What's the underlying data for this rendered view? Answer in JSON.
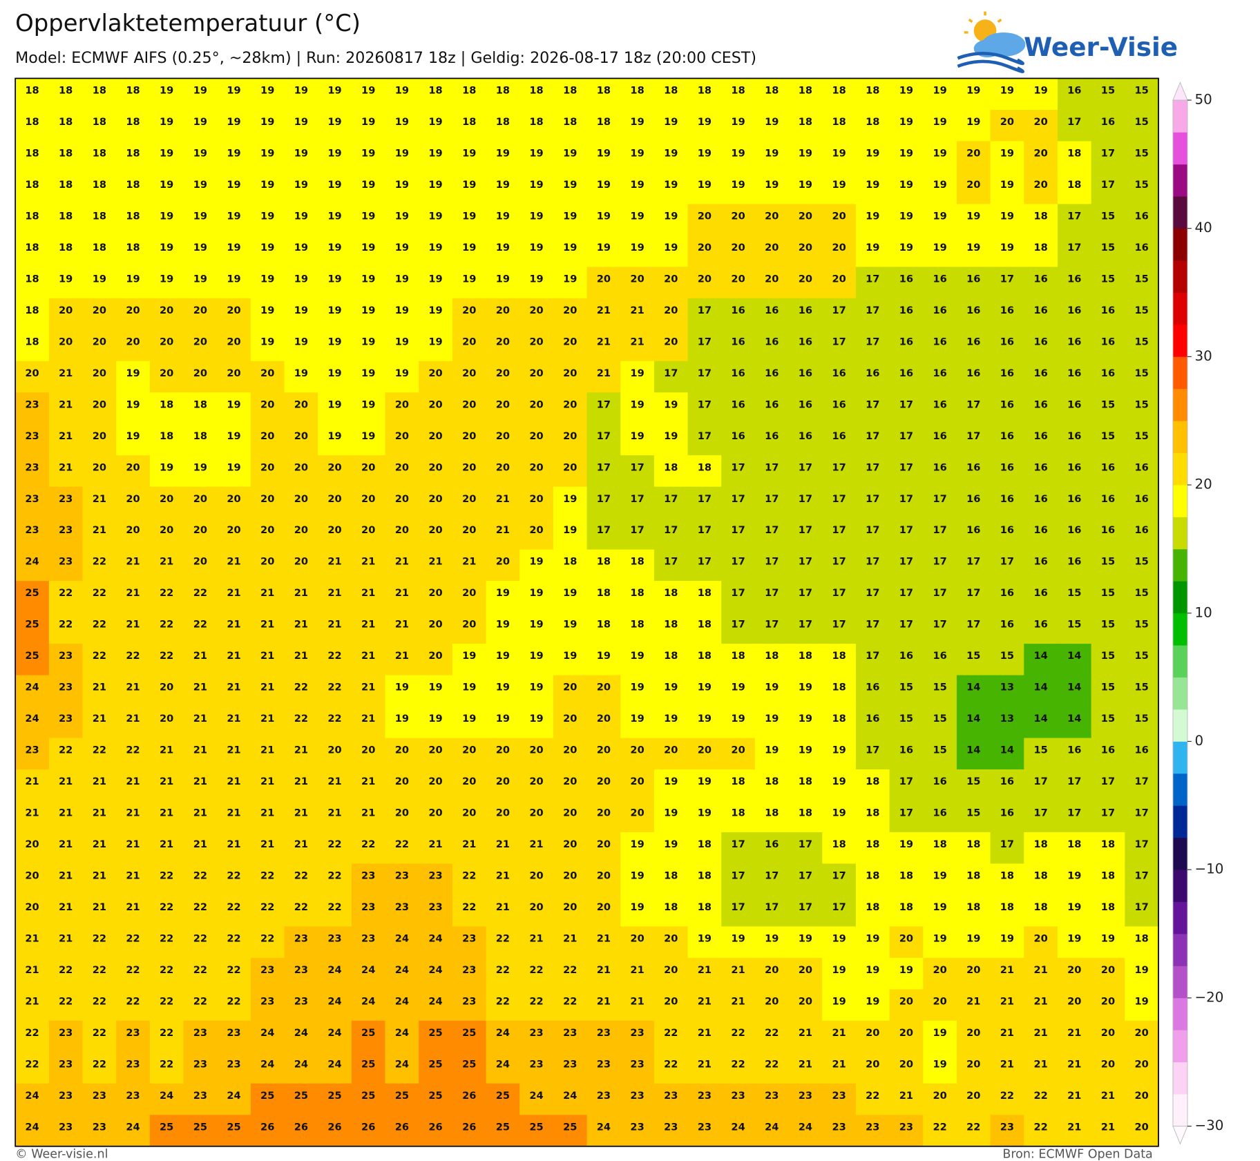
{
  "chart_data": {
    "type": "heatmap",
    "title": "Oppervlaktetemperatuur (°C)",
    "subtitle": "Model: ECMWF AIFS (0.25°, ~28km)  |  Run: 20260817 18z  |  Geldig: 2026-08-17 18z (20:00 CEST)",
    "logo_text": "Weer-Visie",
    "footer_left": "© Weer-visie.nl",
    "footer_right": "Bron: ECMWF Open Data",
    "values": [
      [
        18,
        18,
        18,
        18,
        19,
        19,
        19,
        19,
        19,
        19,
        19,
        19,
        18,
        18,
        18,
        18,
        18,
        18,
        18,
        18,
        18,
        18,
        18,
        18,
        18,
        18,
        19,
        19,
        19,
        19,
        19,
        16,
        15,
        15
      ],
      [
        18,
        18,
        18,
        18,
        19,
        19,
        19,
        19,
        19,
        19,
        19,
        19,
        19,
        18,
        18,
        18,
        18,
        18,
        19,
        19,
        19,
        19,
        19,
        18,
        18,
        18,
        19,
        19,
        19,
        20,
        20,
        17,
        16,
        15
      ],
      [
        18,
        18,
        18,
        18,
        19,
        19,
        19,
        19,
        19,
        19,
        19,
        19,
        19,
        19,
        19,
        19,
        19,
        19,
        19,
        19,
        19,
        19,
        19,
        19,
        19,
        19,
        19,
        19,
        20,
        19,
        20,
        18,
        17,
        15
      ],
      [
        18,
        18,
        18,
        18,
        19,
        19,
        19,
        19,
        19,
        19,
        19,
        19,
        19,
        19,
        19,
        19,
        19,
        19,
        19,
        19,
        19,
        19,
        19,
        19,
        19,
        19,
        19,
        19,
        20,
        19,
        20,
        18,
        17,
        15
      ],
      [
        18,
        18,
        18,
        18,
        19,
        19,
        19,
        19,
        19,
        19,
        19,
        19,
        19,
        19,
        19,
        19,
        19,
        19,
        19,
        19,
        20,
        20,
        20,
        20,
        20,
        19,
        19,
        19,
        19,
        19,
        18,
        17,
        15,
        16
      ],
      [
        18,
        18,
        18,
        18,
        19,
        19,
        19,
        19,
        19,
        19,
        19,
        19,
        19,
        19,
        19,
        19,
        19,
        19,
        19,
        19,
        20,
        20,
        20,
        20,
        20,
        19,
        19,
        19,
        19,
        19,
        18,
        17,
        15,
        16
      ],
      [
        18,
        19,
        19,
        19,
        19,
        19,
        19,
        19,
        19,
        19,
        19,
        19,
        19,
        19,
        19,
        19,
        19,
        20,
        20,
        20,
        20,
        20,
        20,
        20,
        20,
        17,
        16,
        16,
        16,
        17,
        16,
        16,
        15,
        15
      ],
      [
        18,
        20,
        20,
        20,
        20,
        20,
        20,
        19,
        19,
        19,
        19,
        19,
        19,
        20,
        20,
        20,
        20,
        21,
        21,
        20,
        17,
        16,
        16,
        16,
        17,
        17,
        16,
        16,
        16,
        16,
        16,
        16,
        16,
        15
      ],
      [
        18,
        20,
        20,
        20,
        20,
        20,
        20,
        19,
        19,
        19,
        19,
        19,
        19,
        20,
        20,
        20,
        20,
        21,
        21,
        20,
        17,
        16,
        16,
        16,
        17,
        17,
        16,
        16,
        16,
        16,
        16,
        16,
        16,
        15
      ],
      [
        20,
        21,
        20,
        19,
        20,
        20,
        20,
        20,
        19,
        19,
        19,
        19,
        20,
        20,
        20,
        20,
        20,
        21,
        19,
        17,
        17,
        16,
        16,
        16,
        16,
        16,
        16,
        16,
        16,
        16,
        16,
        16,
        16,
        15
      ],
      [
        23,
        21,
        20,
        19,
        18,
        18,
        19,
        20,
        20,
        19,
        19,
        20,
        20,
        20,
        20,
        20,
        20,
        17,
        19,
        19,
        17,
        16,
        16,
        16,
        16,
        17,
        17,
        16,
        17,
        16,
        16,
        16,
        15,
        15
      ],
      [
        23,
        21,
        20,
        19,
        18,
        18,
        19,
        20,
        20,
        19,
        19,
        20,
        20,
        20,
        20,
        20,
        20,
        17,
        19,
        19,
        17,
        16,
        16,
        16,
        16,
        17,
        17,
        16,
        17,
        16,
        16,
        16,
        15,
        15
      ],
      [
        23,
        21,
        20,
        20,
        19,
        19,
        19,
        20,
        20,
        20,
        20,
        20,
        20,
        20,
        20,
        20,
        20,
        17,
        17,
        18,
        18,
        17,
        17,
        17,
        17,
        17,
        17,
        16,
        16,
        16,
        16,
        16,
        16,
        16
      ],
      [
        23,
        23,
        21,
        20,
        20,
        20,
        20,
        20,
        20,
        20,
        20,
        20,
        20,
        20,
        21,
        20,
        19,
        17,
        17,
        17,
        17,
        17,
        17,
        17,
        17,
        17,
        17,
        17,
        16,
        16,
        16,
        16,
        16,
        16
      ],
      [
        23,
        23,
        21,
        20,
        20,
        20,
        20,
        20,
        20,
        20,
        20,
        20,
        20,
        20,
        21,
        20,
        19,
        17,
        17,
        17,
        17,
        17,
        17,
        17,
        17,
        17,
        17,
        17,
        16,
        16,
        16,
        16,
        16,
        16
      ],
      [
        24,
        23,
        22,
        21,
        21,
        20,
        21,
        20,
        20,
        21,
        21,
        21,
        21,
        21,
        20,
        19,
        18,
        18,
        18,
        17,
        17,
        17,
        17,
        17,
        17,
        17,
        17,
        17,
        17,
        17,
        16,
        16,
        15,
        15
      ],
      [
        25,
        22,
        22,
        21,
        22,
        22,
        21,
        21,
        21,
        21,
        21,
        21,
        20,
        20,
        19,
        19,
        19,
        18,
        18,
        18,
        18,
        17,
        17,
        17,
        17,
        17,
        17,
        17,
        17,
        16,
        16,
        15,
        15,
        15
      ],
      [
        25,
        22,
        22,
        21,
        22,
        22,
        21,
        21,
        21,
        21,
        21,
        21,
        20,
        20,
        19,
        19,
        19,
        18,
        18,
        18,
        18,
        17,
        17,
        17,
        17,
        17,
        17,
        17,
        17,
        16,
        16,
        15,
        15,
        15
      ],
      [
        25,
        23,
        22,
        22,
        22,
        21,
        21,
        21,
        21,
        22,
        21,
        21,
        20,
        19,
        19,
        19,
        19,
        19,
        19,
        18,
        18,
        18,
        18,
        18,
        18,
        17,
        16,
        16,
        15,
        15,
        14,
        14,
        15,
        15
      ],
      [
        24,
        23,
        21,
        21,
        20,
        21,
        21,
        21,
        22,
        22,
        21,
        19,
        19,
        19,
        19,
        19,
        20,
        20,
        19,
        19,
        19,
        19,
        19,
        19,
        18,
        16,
        15,
        15,
        14,
        13,
        14,
        14,
        15,
        15
      ],
      [
        24,
        23,
        21,
        21,
        20,
        21,
        21,
        21,
        22,
        22,
        21,
        19,
        19,
        19,
        19,
        19,
        20,
        20,
        19,
        19,
        19,
        19,
        19,
        19,
        18,
        16,
        15,
        15,
        14,
        13,
        14,
        14,
        15,
        15
      ],
      [
        23,
        22,
        22,
        22,
        21,
        21,
        21,
        21,
        21,
        20,
        20,
        20,
        20,
        20,
        20,
        20,
        20,
        20,
        20,
        20,
        20,
        20,
        19,
        19,
        19,
        17,
        16,
        15,
        14,
        14,
        15,
        16,
        16,
        16
      ],
      [
        21,
        21,
        21,
        21,
        21,
        21,
        21,
        21,
        21,
        21,
        21,
        20,
        20,
        20,
        20,
        20,
        20,
        20,
        20,
        19,
        19,
        18,
        18,
        18,
        19,
        18,
        17,
        16,
        15,
        16,
        17,
        17,
        17,
        17
      ],
      [
        21,
        21,
        21,
        21,
        21,
        21,
        21,
        21,
        21,
        21,
        21,
        20,
        20,
        20,
        20,
        20,
        20,
        20,
        20,
        19,
        19,
        18,
        18,
        18,
        19,
        18,
        17,
        16,
        15,
        16,
        17,
        17,
        17,
        17
      ],
      [
        20,
        21,
        21,
        21,
        21,
        21,
        21,
        21,
        21,
        22,
        22,
        22,
        21,
        21,
        21,
        21,
        20,
        20,
        19,
        19,
        18,
        17,
        16,
        17,
        18,
        18,
        19,
        18,
        18,
        17,
        18,
        18,
        18,
        17
      ],
      [
        20,
        21,
        21,
        21,
        22,
        22,
        22,
        22,
        22,
        22,
        23,
        23,
        23,
        22,
        21,
        20,
        20,
        20,
        19,
        18,
        18,
        17,
        17,
        17,
        17,
        18,
        18,
        19,
        18,
        18,
        18,
        19,
        18,
        17
      ],
      [
        20,
        21,
        21,
        21,
        22,
        22,
        22,
        22,
        22,
        22,
        23,
        23,
        23,
        22,
        21,
        20,
        20,
        20,
        19,
        18,
        18,
        17,
        17,
        17,
        17,
        18,
        18,
        19,
        18,
        18,
        18,
        19,
        18,
        17
      ],
      [
        21,
        21,
        22,
        22,
        22,
        22,
        22,
        22,
        23,
        23,
        23,
        24,
        24,
        23,
        22,
        21,
        21,
        21,
        20,
        20,
        19,
        19,
        19,
        19,
        19,
        19,
        20,
        19,
        19,
        19,
        20,
        19,
        19,
        18
      ],
      [
        21,
        22,
        22,
        22,
        22,
        22,
        22,
        23,
        23,
        24,
        24,
        24,
        24,
        23,
        22,
        22,
        22,
        21,
        21,
        20,
        21,
        21,
        20,
        20,
        19,
        19,
        19,
        20,
        20,
        21,
        21,
        20,
        20,
        19
      ],
      [
        21,
        22,
        22,
        22,
        22,
        22,
        22,
        23,
        23,
        24,
        24,
        24,
        24,
        23,
        22,
        22,
        22,
        21,
        21,
        20,
        21,
        21,
        20,
        20,
        19,
        19,
        20,
        20,
        21,
        21,
        21,
        20,
        20,
        19
      ],
      [
        22,
        23,
        22,
        23,
        22,
        23,
        23,
        24,
        24,
        24,
        25,
        24,
        25,
        25,
        24,
        23,
        23,
        23,
        23,
        22,
        21,
        22,
        22,
        21,
        21,
        20,
        20,
        19,
        20,
        21,
        21,
        21,
        20,
        20
      ],
      [
        22,
        23,
        22,
        23,
        22,
        23,
        23,
        24,
        24,
        24,
        25,
        24,
        25,
        25,
        24,
        23,
        23,
        23,
        23,
        22,
        21,
        22,
        22,
        21,
        21,
        20,
        20,
        19,
        20,
        21,
        21,
        21,
        20,
        20
      ],
      [
        24,
        23,
        23,
        23,
        24,
        23,
        24,
        25,
        25,
        25,
        25,
        25,
        25,
        26,
        25,
        24,
        24,
        23,
        23,
        23,
        23,
        23,
        23,
        23,
        23,
        22,
        21,
        20,
        20,
        22,
        22,
        21,
        21,
        20
      ],
      [
        24,
        23,
        23,
        24,
        25,
        25,
        25,
        26,
        26,
        26,
        26,
        26,
        26,
        26,
        25,
        25,
        25,
        24,
        23,
        23,
        23,
        24,
        24,
        24,
        23,
        23,
        23,
        22,
        22,
        23,
        22,
        21,
        21,
        20
      ]
    ],
    "colorbar": {
      "lim": [
        -30,
        50
      ],
      "ticks": [
        {
          "value": -30,
          "label": "−30"
        },
        {
          "value": -20,
          "label": "−20"
        },
        {
          "value": -10,
          "label": "−10"
        },
        0,
        10,
        20,
        30,
        40,
        50
      ],
      "colors": [
        "#fff0fb",
        "#fcd2f5",
        "#f0a0eb",
        "#dc78e1",
        "#b450c8",
        "#8c32b4",
        "#64149b",
        "#3c0a6e",
        "#1e0a50",
        "#002896",
        "#0064c8",
        "#30b4f0",
        "#d4fad4",
        "#96e696",
        "#5ad25a",
        "#00be00",
        "#009600",
        "#46b400",
        "#c8dc00",
        "#ffff00",
        "#ffdc00",
        "#ffc000",
        "#ff8c00",
        "#ff5a00",
        "#ff0000",
        "#dc0000",
        "#b40000",
        "#8c0000",
        "#5a0a3c",
        "#9b0a82",
        "#e650dc",
        "#f8aae8"
      ]
    }
  }
}
